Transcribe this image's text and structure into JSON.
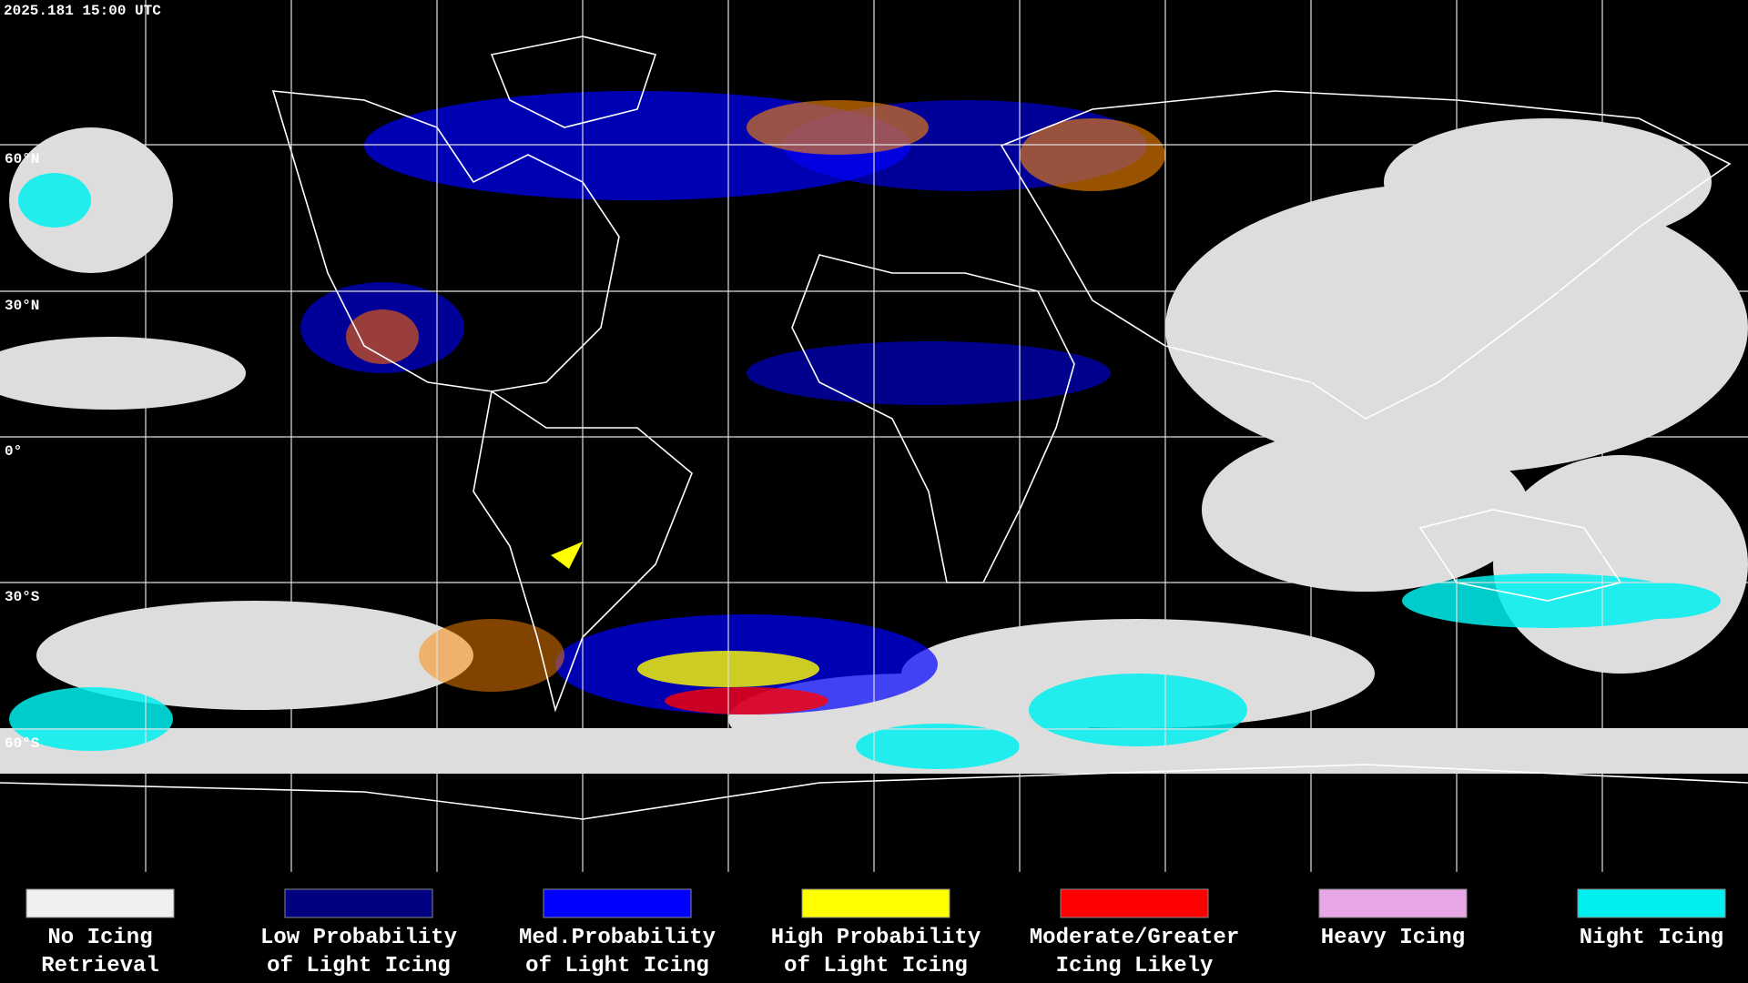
{
  "header": {
    "timestamp": "2025.181 15:00 UTC"
  },
  "latitude_labels": [
    "60°N",
    "30°N",
    "0°",
    "30°S",
    "60°S"
  ],
  "legend": [
    {
      "lines": [
        "No Icing",
        "Retrieval"
      ],
      "color": "#f0f0f0"
    },
    {
      "lines": [
        "Low Probability",
        "of Light Icing"
      ],
      "color": "#000080"
    },
    {
      "lines": [
        "Med.Probability",
        "of Light Icing"
      ],
      "color": "#0000ff"
    },
    {
      "lines": [
        "High Probability",
        "of Light Icing"
      ],
      "color": "#ffff00"
    },
    {
      "lines": [
        "Moderate/Greater",
        "Icing Likely"
      ],
      "color": "#ff0000"
    },
    {
      "lines": [
        "Heavy Icing"
      ],
      "color": "#e8a8e8"
    },
    {
      "lines": [
        "Night Icing"
      ],
      "color": "#00f0f0"
    }
  ]
}
